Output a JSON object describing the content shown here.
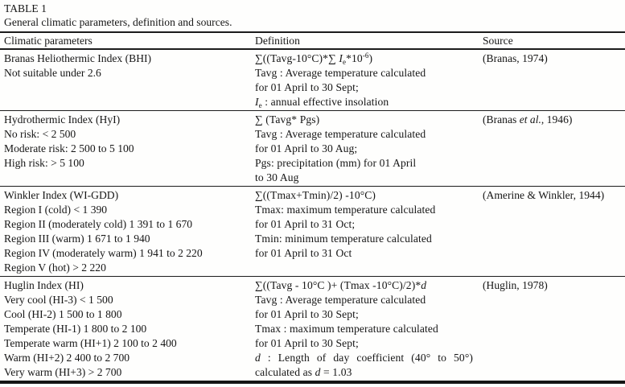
{
  "title": "TABLE 1",
  "caption": "General climatic parameters, definition and sources.",
  "headers": [
    "Climatic parameters",
    "Definition",
    "Source"
  ],
  "rows": [
    {
      "parameter_lines": [
        "Branas Heliothermic Index (BHI)",
        "Not suitable under 2.6"
      ],
      "definition_lines": [
        "∑((Tavg-10°C)*∑ <i>I</i><sub>e</sub>*10<sup>-6</sup>)",
        "Tavg : Average temperature calculated",
        "for 01 April to 30 Sept;",
        "<i>I</i><sub>e</sub> : annual effective insolation"
      ],
      "source": "(Branas, 1974)"
    },
    {
      "parameter_lines": [
        "Hydrothermic Index (HyI)",
        "No risk: < 2 500",
        "Moderate risk: 2 500 to 5 100",
        "High risk: > 5 100"
      ],
      "definition_lines": [
        "∑ (Tavg* Pgs)",
        "Tavg : Average temperature calculated",
        "for 01 April to 30 Aug;",
        "Pgs: precipitation (mm) for 01 April",
        "to 30 Aug"
      ],
      "source_rich": "(Branas <i>et al.</i>, 1946)"
    },
    {
      "parameter_lines": [
        "Winkler Index (WI-GDD)",
        "Region I (cold) < 1 390",
        "Region II (moderately cold) 1 391 to 1 670",
        "Region III (warm) 1 671 to 1 940",
        "Region IV (moderately warm) 1 941 to 2 220",
        "Region V (hot) > 2 220"
      ],
      "definition_lines": [
        "∑((Tmax+Tmin)/2) -10°C)",
        "Tmax: maximum temperature calculated",
        "for 01 April to 31 Oct;",
        "Tmin: minimum temperature calculated",
        "for 01 April to 31 Oct"
      ],
      "source": "(Amerine & Winkler, 1944)"
    },
    {
      "parameter_lines": [
        "Huglin Index (HI)",
        "Very cool (HI-3) < 1 500",
        "Cool (HI-2) 1 500 to 1 800",
        "Temperate (HI-1) 1 800 to 2 100",
        "Temperate warm (HI+1) 2 100 to 2 400",
        "Warm (HI+2) 2 400 to 2 700",
        "Very warm (HI+3) > 2 700"
      ],
      "definition_lines": [
        "∑((Tavg - 10°C )+ (Tmax -10°C)/2)*<i>d</i>",
        "Tavg : Average temperature calculated",
        "for 01 April to 30 Sept;",
        "Tmax : maximum temperature calculated",
        "for 01 April to 30 Sept;",
        "<i>d</i> : Length of day coefficient (40° to 50°)",
        "calculated as <i>d</i> = 1.03"
      ],
      "source": "(Huglin, 1978)"
    }
  ]
}
